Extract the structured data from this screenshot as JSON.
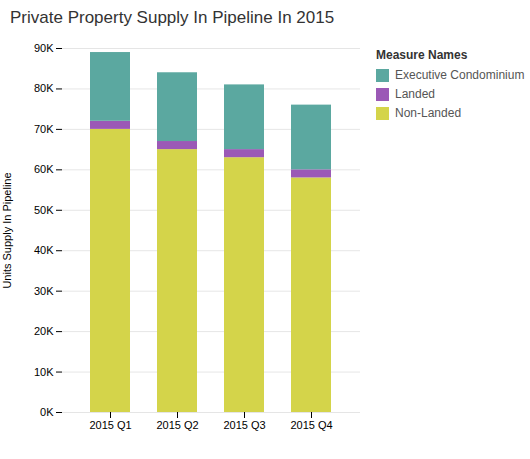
{
  "chart_data": {
    "type": "bar",
    "stacked": true,
    "title": "Private Property Supply In Pipeline In 2015",
    "ylabel": "Units Supply In Pipeline",
    "legend_title": "Measure Names",
    "legend": "right",
    "grid": true,
    "categories": [
      "2015 Q1",
      "2015 Q2",
      "2015 Q3",
      "2015 Q4"
    ],
    "series": [
      {
        "name": "Non-Landed",
        "color": "#d4d44a",
        "values": [
          70000,
          65000,
          63000,
          58000
        ]
      },
      {
        "name": "Landed",
        "color": "#9b59b6",
        "values": [
          2000,
          2000,
          2000,
          2000
        ]
      },
      {
        "name": "Executive Condominium",
        "color": "#5ba8a0",
        "values": [
          17000,
          17000,
          16000,
          16000
        ]
      }
    ],
    "ylim": [
      0,
      90000
    ],
    "yticks": [
      {
        "value": 0,
        "label": "0K"
      },
      {
        "value": 10000,
        "label": "10K"
      },
      {
        "value": 20000,
        "label": "20K"
      },
      {
        "value": 30000,
        "label": "30K"
      },
      {
        "value": 40000,
        "label": "40K"
      },
      {
        "value": 50000,
        "label": "50K"
      },
      {
        "value": 60000,
        "label": "60K"
      },
      {
        "value": 70000,
        "label": "70K"
      },
      {
        "value": 80000,
        "label": "80K"
      },
      {
        "value": 90000,
        "label": "90K"
      }
    ]
  }
}
